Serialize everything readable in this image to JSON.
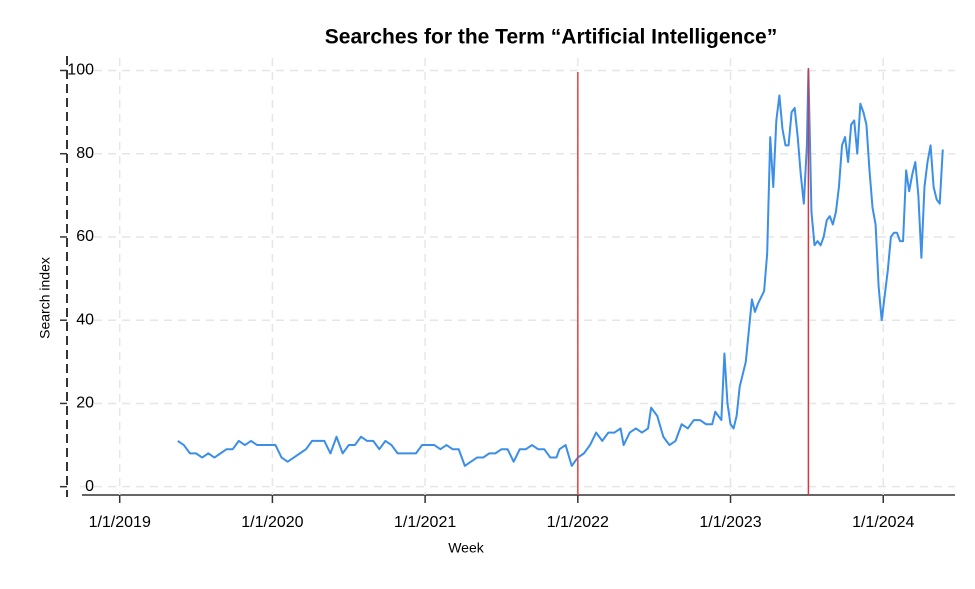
{
  "chart_data": {
    "type": "line",
    "title": "Searches for the Term “Artificial Intelligence”",
    "x_label": "Week",
    "y_label": "Search index",
    "xlim": [
      2018.74,
      2024.47
    ],
    "ylim": [
      -2,
      103
    ],
    "xticks": [
      {
        "value": 2019,
        "label": "1/1/2019"
      },
      {
        "value": 2020,
        "label": "1/1/2020"
      },
      {
        "value": 2021,
        "label": "1/1/2021"
      },
      {
        "value": 2022,
        "label": "1/1/2022"
      },
      {
        "value": 2023,
        "label": "1/1/2023"
      },
      {
        "value": 2024,
        "label": "1/1/2024"
      }
    ],
    "yticks": [
      0,
      20,
      40,
      60,
      80,
      100
    ],
    "grid": true,
    "vlines": [
      {
        "value": 2022,
        "color": "#e8413c"
      },
      {
        "value": 2023.51,
        "color": "#d9363e"
      }
    ],
    "x": [
      2019.38,
      2019.42,
      2019.46,
      2019.5,
      2019.54,
      2019.58,
      2019.62,
      2019.66,
      2019.7,
      2019.74,
      2019.78,
      2019.82,
      2019.86,
      2019.9,
      2019.94,
      2019.98,
      2020.02,
      2020.06,
      2020.1,
      2020.14,
      2020.18,
      2020.22,
      2020.26,
      2020.3,
      2020.34,
      2020.38,
      2020.42,
      2020.46,
      2020.5,
      2020.54,
      2020.58,
      2020.62,
      2020.66,
      2020.7,
      2020.74,
      2020.78,
      2020.82,
      2020.86,
      2020.9,
      2020.94,
      2020.98,
      2021.02,
      2021.06,
      2021.1,
      2021.14,
      2021.18,
      2021.22,
      2021.26,
      2021.3,
      2021.34,
      2021.38,
      2021.42,
      2021.46,
      2021.5,
      2021.54,
      2021.58,
      2021.62,
      2021.66,
      2021.7,
      2021.74,
      2021.78,
      2021.82,
      2021.86,
      2021.88,
      2021.92,
      2021.96,
      2022.0,
      2022.04,
      2022.08,
      2022.12,
      2022.16,
      2022.2,
      2022.24,
      2022.28,
      2022.3,
      2022.34,
      2022.38,
      2022.42,
      2022.46,
      2022.48,
      2022.52,
      2022.56,
      2022.6,
      2022.64,
      2022.68,
      2022.72,
      2022.76,
      2022.8,
      2022.84,
      2022.88,
      2022.9,
      2022.94,
      2022.96,
      2022.98,
      2023.0,
      2023.02,
      2023.04,
      2023.06,
      2023.1,
      2023.14,
      2023.16,
      2023.18,
      2023.22,
      2023.24,
      2023.26,
      2023.28,
      2023.3,
      2023.32,
      2023.34,
      2023.36,
      2023.38,
      2023.4,
      2023.42,
      2023.44,
      2023.46,
      2023.48,
      2023.5,
      2023.51,
      2023.53,
      2023.55,
      2023.57,
      2023.59,
      2023.61,
      2023.63,
      2023.65,
      2023.67,
      2023.69,
      2023.71,
      2023.73,
      2023.75,
      2023.77,
      2023.79,
      2023.81,
      2023.83,
      2023.85,
      2023.87,
      2023.89,
      2023.91,
      2023.93,
      2023.95,
      2023.97,
      2023.99,
      2024.01,
      2024.03,
      2024.05,
      2024.07,
      2024.09,
      2024.11,
      2024.13,
      2024.15,
      2024.17,
      2024.19,
      2024.21,
      2024.23,
      2024.25,
      2024.27,
      2024.29,
      2024.31,
      2024.33,
      2024.35,
      2024.37,
      2024.39
    ],
    "series": [
      {
        "color": "#3b8fe8",
        "values": [
          11,
          10,
          8,
          8,
          7,
          8,
          7,
          8,
          9,
          9,
          11,
          10,
          11,
          10,
          10,
          10,
          10,
          7,
          6,
          7,
          8,
          9,
          11,
          11,
          11,
          8,
          12,
          8,
          10,
          10,
          12,
          11,
          11,
          9,
          11,
          10,
          8,
          8,
          8,
          8,
          10,
          10,
          10,
          9,
          10,
          9,
          9,
          5,
          6,
          7,
          7,
          8,
          8,
          9,
          9,
          6,
          9,
          9,
          10,
          9,
          9,
          7,
          7,
          9,
          10,
          5,
          7,
          8,
          10,
          13,
          11,
          13,
          13,
          14,
          10,
          13,
          14,
          13,
          14,
          19,
          17,
          12,
          10,
          11,
          15,
          14,
          16,
          16,
          15,
          15,
          18,
          16,
          32,
          20,
          15,
          14,
          17,
          24,
          30,
          45,
          42,
          44,
          47,
          56,
          84,
          72,
          88,
          94,
          86,
          82,
          82,
          90,
          91,
          84,
          75,
          68,
          82,
          100,
          66,
          58,
          59,
          58,
          60,
          64,
          65,
          63,
          66,
          72,
          82,
          84,
          78,
          87,
          88,
          80,
          92,
          90,
          87,
          76,
          67,
          63,
          48,
          40,
          46,
          52,
          60,
          61,
          61,
          59,
          59,
          76,
          71,
          75,
          78,
          70,
          55,
          72,
          78,
          82,
          72,
          69,
          68,
          81
        ]
      }
    ]
  }
}
